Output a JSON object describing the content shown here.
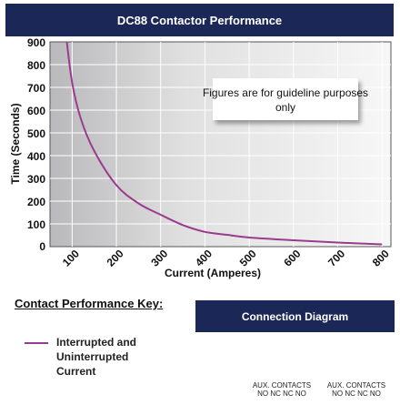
{
  "chart_data": {
    "type": "line",
    "title": "DC88 Contactor Performance",
    "xlabel": "Current (Amperes)",
    "ylabel": "Time (Seconds)",
    "xlim": [
      50,
      820
    ],
    "ylim": [
      0,
      900
    ],
    "x_ticks": [
      "100",
      "200",
      "300",
      "400",
      "500",
      "600",
      "700",
      "800"
    ],
    "y_ticks": [
      "0",
      "100",
      "200",
      "300",
      "400",
      "500",
      "600",
      "700",
      "800",
      "900"
    ],
    "grid": true,
    "series": [
      {
        "name": "Interrupted and Uninterrupted Current",
        "color": "#9b3b8e",
        "x": [
          88,
          100,
          120,
          150,
          200,
          250,
          300,
          350,
          400,
          450,
          500,
          600,
          700,
          800
        ],
        "y": [
          900,
          720,
          560,
          420,
          270,
          190,
          140,
          95,
          65,
          52,
          40,
          28,
          18,
          10
        ]
      }
    ],
    "annotation": "Figures are for guideline purposes only"
  },
  "key": {
    "title": "Contact Performance Key:",
    "label": "Interrupted and Uninterrupted Current"
  },
  "connection": {
    "title": "Connection Diagram",
    "aux_label_1": "AUX. CONTACTS",
    "aux_label_2": "AUX. CONTACTS",
    "pins_1": "NO NC  NC NO",
    "pins_2": "NO NC  NC NO"
  }
}
